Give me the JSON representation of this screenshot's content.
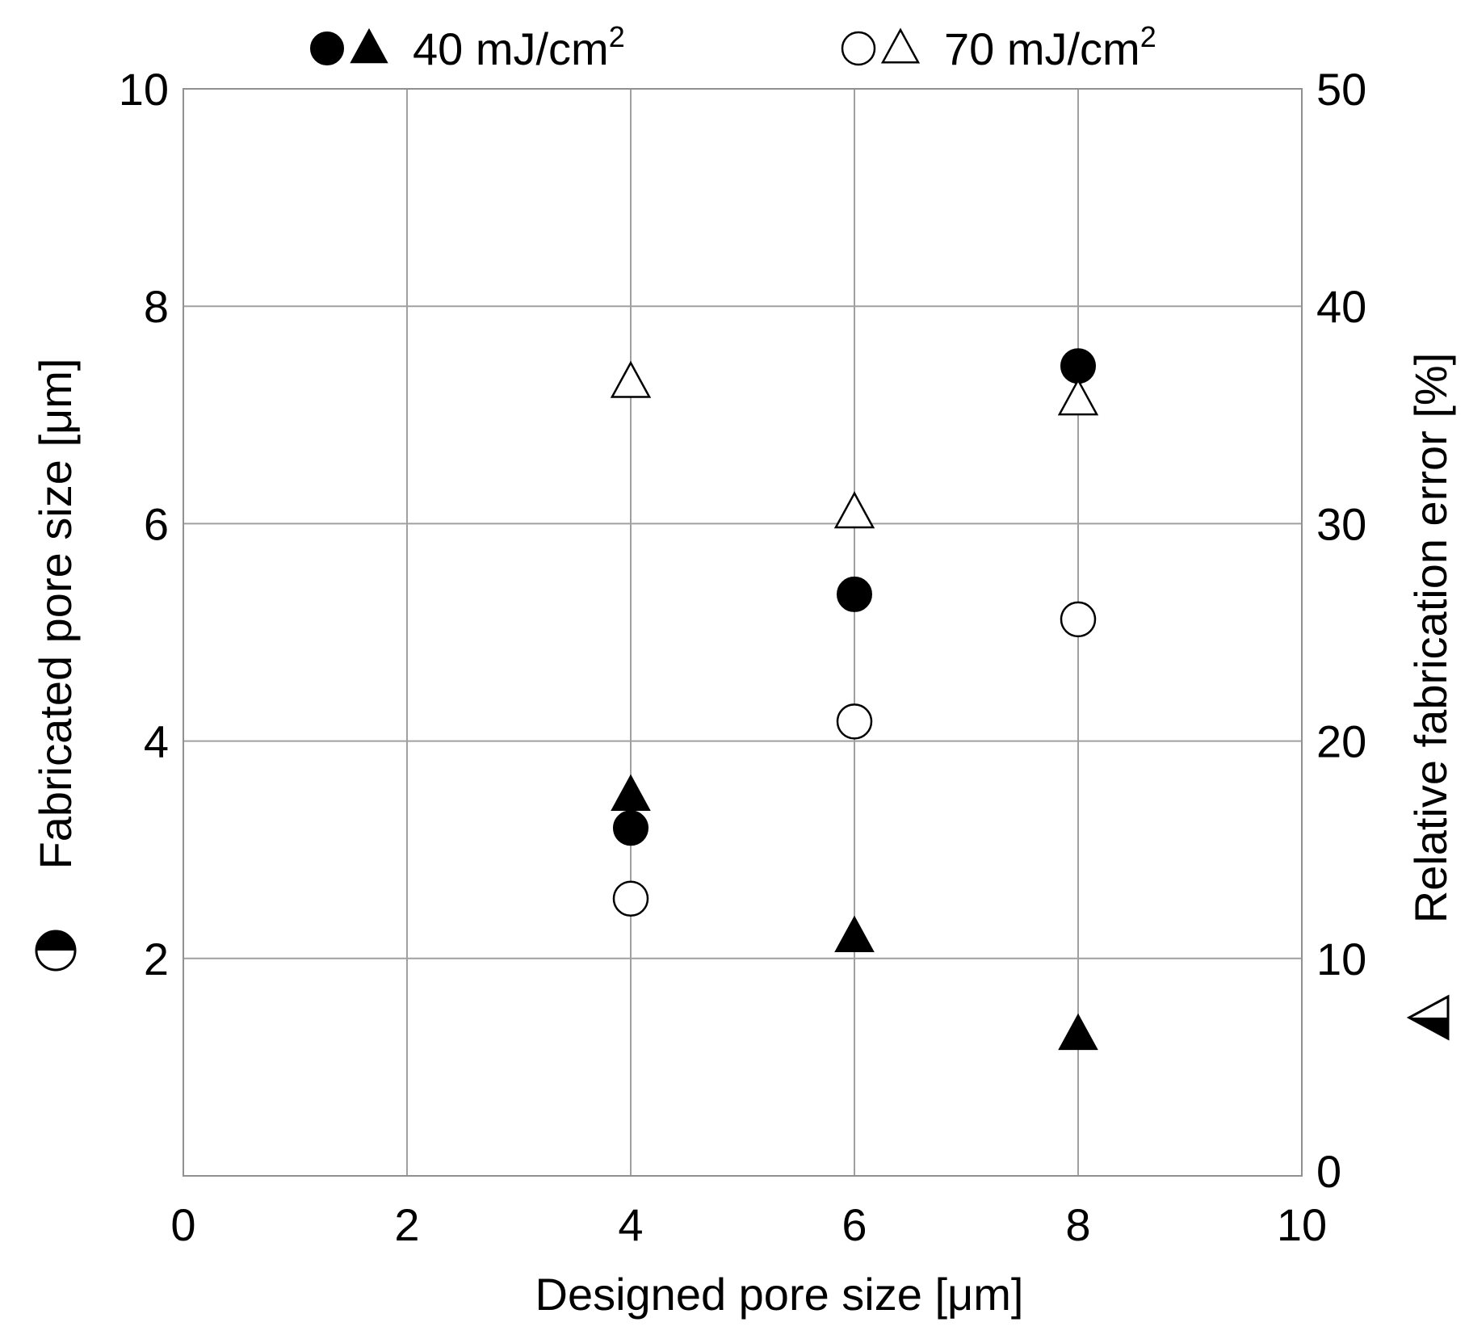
{
  "chart_data": {
    "type": "scatter",
    "xlabel": "Designed pore size [μm]",
    "ylabel_left": "Fabricated pore size  [μm]",
    "ylabel_right": "Relative fabrication error  [%]",
    "xlim": [
      0,
      10
    ],
    "ylim_left": [
      0,
      10
    ],
    "ylim_right": [
      0,
      50
    ],
    "x_ticks": [
      "0",
      "2",
      "4",
      "6",
      "8",
      "10"
    ],
    "y_left_ticks": [
      "2",
      "4",
      "6",
      "8",
      "10"
    ],
    "y_right_ticks": [
      "0",
      "10",
      "20",
      "30",
      "40",
      "50"
    ],
    "grid": true,
    "legend": [
      {
        "text": "40 mJ/cm",
        "sup": "2",
        "markers": [
          "filled-circle",
          "filled-triangle"
        ]
      },
      {
        "text": "70 mJ/cm",
        "sup": "2",
        "markers": [
          "open-circle",
          "open-triangle"
        ]
      }
    ],
    "legend_placement": "top",
    "series": [
      {
        "axis": "left",
        "marker": "filled-circle",
        "points": [
          [
            4,
            3.2
          ],
          [
            6,
            5.35
          ],
          [
            8,
            7.45
          ]
        ]
      },
      {
        "axis": "left",
        "marker": "open-circle",
        "points": [
          [
            4,
            2.55
          ],
          [
            6,
            4.18
          ],
          [
            8,
            5.12
          ]
        ]
      },
      {
        "axis": "right",
        "marker": "filled-triangle",
        "points": [
          [
            4,
            17.5
          ],
          [
            6,
            11.0
          ],
          [
            8,
            6.5
          ]
        ]
      },
      {
        "axis": "right",
        "marker": "open-triangle",
        "points": [
          [
            4,
            36.5
          ],
          [
            6,
            30.5
          ],
          [
            8,
            35.7
          ]
        ]
      }
    ]
  }
}
